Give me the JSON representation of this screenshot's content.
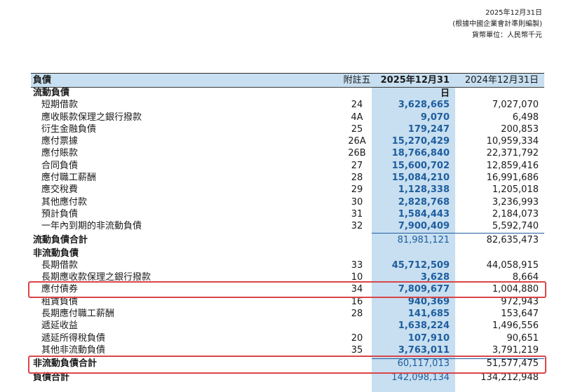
{
  "header": {
    "date": "2025年12月31日",
    "standard": "(根據中國企業會計準則編製)",
    "currency": "貨幣單位：人民幣千元"
  },
  "table": {
    "col_headers": {
      "label": "負債",
      "note": "附註五",
      "cur": "2025年12月31日",
      "prev": "2024年12月31日"
    },
    "current_title": "流動負債",
    "current_rows": [
      {
        "label": "短期借款",
        "note": "24",
        "cur": "3,628,665",
        "prev": "7,027,070"
      },
      {
        "label": "應收賬款保理之銀行撥款",
        "note": "4A",
        "cur": "9,070",
        "prev": "6,498"
      },
      {
        "label": "衍生金融負債",
        "note": "25",
        "cur": "179,247",
        "prev": "200,853"
      },
      {
        "label": "應付票據",
        "note": "26A",
        "cur": "15,270,429",
        "prev": "10,959,334"
      },
      {
        "label": "應付賬款",
        "note": "26B",
        "cur": "18,766,840",
        "prev": "22,371,792"
      },
      {
        "label": "合同負債",
        "note": "27",
        "cur": "15,600,702",
        "prev": "12,859,416"
      },
      {
        "label": "應付職工薪酬",
        "note": "28",
        "cur": "15,084,210",
        "prev": "16,991,686"
      },
      {
        "label": "應交稅費",
        "note": "29",
        "cur": "1,128,338",
        "prev": "1,205,018"
      },
      {
        "label": "其他應付款",
        "note": "30",
        "cur": "2,828,768",
        "prev": "3,236,993"
      },
      {
        "label": "預計負債",
        "note": "31",
        "cur": "1,584,443",
        "prev": "2,184,073"
      },
      {
        "label": "一年內到期的非流動負債",
        "note": "32",
        "cur": "7,900,409",
        "prev": "5,592,740"
      }
    ],
    "current_total": {
      "label": "流動負債合計",
      "cur": "81,981,121",
      "prev": "82,635,473"
    },
    "noncurrent_title": "非流動負債",
    "noncurrent_rows": [
      {
        "label": "長期借款",
        "note": "33",
        "cur": "45,712,509",
        "prev": "44,058,915"
      },
      {
        "label": "長期應收款保理之銀行撥款",
        "note": "10",
        "cur": "3,628",
        "prev": "8,664"
      },
      {
        "label": "應付債券",
        "note": "34",
        "cur": "7,809,677",
        "prev": "1,004,880"
      },
      {
        "label": "租賃負債",
        "note": "16",
        "cur": "940,369",
        "prev": "972,943"
      },
      {
        "label": "長期應付職工薪酬",
        "note": "28",
        "cur": "141,685",
        "prev": "153,647"
      },
      {
        "label": "遞延收益",
        "note": "",
        "cur": "1,638,224",
        "prev": "1,496,556"
      },
      {
        "label": "遞延所得稅負債",
        "note": "20",
        "cur": "107,910",
        "prev": "90,651"
      },
      {
        "label": "其他非流動負債",
        "note": "35",
        "cur": "3,763,011",
        "prev": "3,791,219"
      }
    ],
    "noncurrent_total": {
      "label": "非流動負債合計",
      "cur": "60,117,013",
      "prev": "51,577,475"
    },
    "grand_total": {
      "label": "負債合計",
      "cur": "142,098,134",
      "prev": "134,212,948"
    }
  },
  "colors": {
    "highlight": "#c7dff0",
    "current_value": "#1f5d9e",
    "annotation": "#d9454a"
  }
}
